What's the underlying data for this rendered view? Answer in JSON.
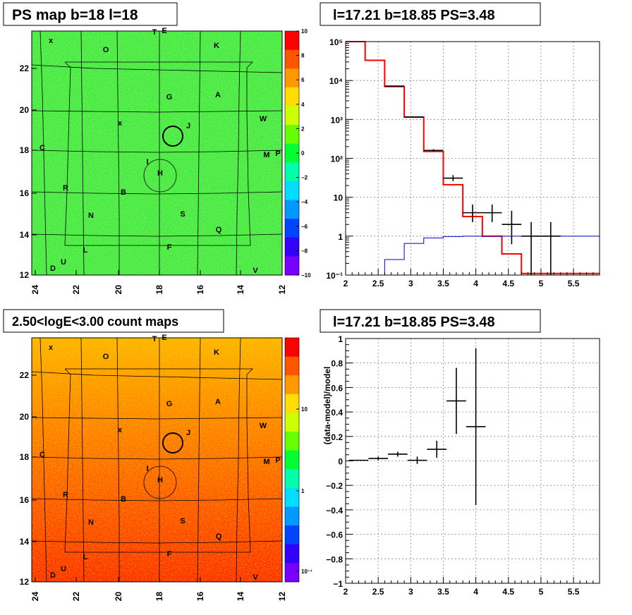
{
  "panels": {
    "ps_map_title": "PS map b=18 l=18",
    "spectrum_title": "l=17.21 b=18.85 PS=3.48",
    "count_map_title": "2.50<logE<3.00 count maps",
    "residual_title": "l=17.21 b=18.85 PS=3.48"
  },
  "sky_map": {
    "x_ticks": [
      "24",
      "22",
      "20",
      "18",
      "16",
      "14",
      "12"
    ],
    "y_ticks": [
      "22",
      "20",
      "18",
      "16",
      "14",
      "12"
    ],
    "source_labels": [
      "T",
      "E",
      "O",
      "K",
      "G",
      "A",
      "W",
      "J",
      "C",
      "M",
      "P",
      "I",
      "H",
      "R",
      "B",
      "N",
      "S",
      "Q",
      "F",
      "L",
      "U",
      "D",
      "V"
    ],
    "markers": [
      "x",
      "x"
    ]
  },
  "ps_colorbar": {
    "labels": [
      "10",
      "8",
      "6",
      "4",
      "2",
      "0",
      "−2",
      "−4",
      "−6",
      "−8",
      "−10"
    ],
    "colors": [
      "#ff0000",
      "#ff5500",
      "#ff9900",
      "#ffdd00",
      "#ccff00",
      "#66ff00",
      "#00ff33",
      "#00ffaa",
      "#00ddff",
      "#0099ff",
      "#0044ff",
      "#3300ff",
      "#7700ff"
    ]
  },
  "count_colorbar": {
    "labels": [
      "10",
      "1",
      "10⁻¹"
    ],
    "colors": [
      "#ff0000",
      "#ff5500",
      "#ff9900",
      "#ffdd00",
      "#ccff00",
      "#66ff00",
      "#00ff33",
      "#00ffaa",
      "#00ddff",
      "#0099ff",
      "#0044ff",
      "#3300ff",
      "#7700ff"
    ]
  },
  "chart_data": [
    {
      "type": "line",
      "title": "l=17.21 b=18.85 PS=3.48",
      "xlim": [
        2,
        5.9
      ],
      "ylim": [
        0.1,
        100000
      ],
      "yscale": "log",
      "grid": true,
      "x_ticks": [
        "2",
        "2.5",
        "3",
        "3.5",
        "4",
        "4.5",
        "5",
        "5.5"
      ],
      "y_ticks": [
        "10⁵",
        "10⁴",
        "10³",
        "10²",
        "10",
        "1",
        "10⁻¹"
      ],
      "series": [
        {
          "style": "step",
          "color": "#ff0000",
          "edges": [
            2.0,
            2.3,
            2.6,
            2.9,
            3.2,
            3.5,
            3.8,
            4.1,
            4.4,
            4.7,
            5.0,
            5.9
          ],
          "values": [
            100000,
            33000,
            7000,
            1150,
            150,
            21,
            3.2,
            1.0,
            0.35,
            0.11,
            0.11
          ]
        },
        {
          "style": "step",
          "color": "#0000cc",
          "edges": [
            2.6,
            2.9,
            3.2,
            3.5,
            3.8,
            4.1,
            4.4,
            4.7,
            5.0,
            5.9
          ],
          "values": [
            0.25,
            0.65,
            0.9,
            0.98,
            1.0,
            1.0,
            1.0,
            1.0,
            1.0
          ]
        },
        {
          "style": "errorbar",
          "color": "#000000",
          "x": [
            2.75,
            3.05,
            3.35,
            3.65,
            3.95,
            4.25,
            4.55,
            4.85,
            5.15
          ],
          "xerr": 0.15,
          "y": [
            7200,
            1150,
            160,
            31,
            4.0,
            4.0,
            2.0,
            1.0,
            1.0
          ],
          "ylow": [
            7200,
            1150,
            150,
            26,
            2.3,
            2.3,
            0.62,
            0.1,
            0.1
          ],
          "yhigh": [
            7200,
            1150,
            172,
            37,
            6.5,
            6.5,
            4.5,
            2.3,
            2.3
          ]
        }
      ]
    },
    {
      "type": "scatter",
      "title": "l=17.21 b=18.85 PS=3.48",
      "ylabel": "(data-model)/model",
      "xlim": [
        2,
        5.9
      ],
      "ylim": [
        -1,
        1
      ],
      "grid": true,
      "x_ticks": [
        "2",
        "2.5",
        "3",
        "3.5",
        "4",
        "4.5",
        "5",
        "5.5"
      ],
      "y_ticks": [
        "1",
        "0.8",
        "0.6",
        "0.4",
        "0.2",
        "0",
        "−0.2",
        "−0.4",
        "−0.6",
        "−0.8",
        "−1"
      ],
      "series": [
        {
          "style": "errorbar",
          "color": "#000000",
          "x": [
            2.2,
            2.5,
            2.8,
            3.1,
            3.4,
            3.7,
            4.0
          ],
          "xerr": 0.15,
          "y": [
            0.005,
            0.02,
            0.055,
            0.005,
            0.095,
            0.49,
            0.28
          ],
          "yerr": [
            0.0,
            0.015,
            0.02,
            0.03,
            0.07,
            0.27,
            0.64
          ]
        }
      ]
    }
  ]
}
